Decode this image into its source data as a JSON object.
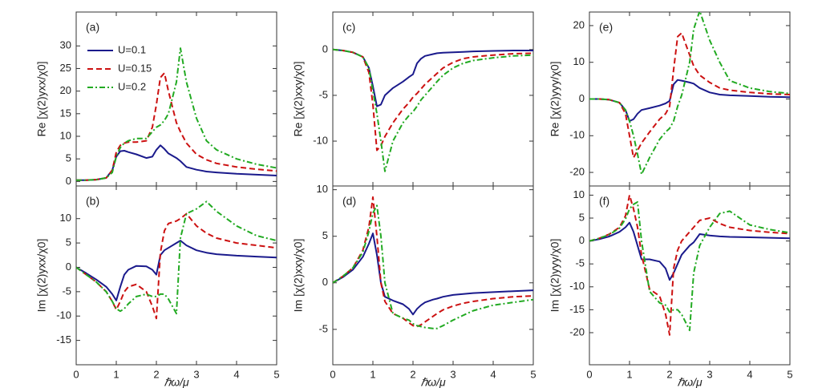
{
  "chart_data": [
    {
      "type": "line",
      "panel_label": "(a)",
      "ylabel": "Re [χ(2)yxx/χ0]",
      "legend": true,
      "x": [
        0,
        0.25,
        0.5,
        0.75,
        0.9,
        1,
        1.1,
        1.2,
        1.3,
        1.5,
        1.75,
        1.9,
        2,
        2.1,
        2.2,
        2.3,
        2.5,
        2.6,
        2.75,
        3,
        3.25,
        3.5,
        4,
        4.5,
        5
      ],
      "xlim": [
        0,
        5
      ],
      "xticks": [
        0,
        1,
        2,
        3,
        4,
        5
      ],
      "ylim": [
        -1,
        37.5
      ],
      "yticks": [
        0,
        5,
        10,
        15,
        20,
        25,
        30
      ],
      "series": [
        {
          "name": "U=0.1",
          "color": "#1a1a8c",
          "dash": "none",
          "values": [
            0.3,
            0.3,
            0.4,
            0.8,
            2.5,
            5.5,
            6.7,
            6.8,
            6.5,
            6,
            5.2,
            5.5,
            7,
            8,
            7.2,
            6.2,
            5.2,
            4.5,
            3.2,
            2.6,
            2.2,
            2,
            1.7,
            1.5,
            1.3
          ]
        },
        {
          "name": "U=0.15",
          "color": "#cc1111",
          "dash": "7,4",
          "values": [
            0.3,
            0.3,
            0.4,
            0.8,
            2.5,
            6.5,
            8,
            8.5,
            8.7,
            8.7,
            9,
            12,
            17,
            23,
            24,
            20,
            13,
            11,
            8.5,
            6,
            4.8,
            4,
            3.2,
            2.7,
            2.3
          ]
        },
        {
          "name": "U=0.2",
          "color": "#22aa22",
          "dash": "7,3,2,3",
          "values": [
            0.3,
            0.3,
            0.4,
            0.8,
            2,
            5.5,
            7.5,
            8.5,
            9,
            9.5,
            9.5,
            11,
            12,
            12.5,
            13.5,
            15,
            22,
            29.5,
            22,
            14,
            9,
            7,
            5,
            3.8,
            3
          ]
        }
      ]
    },
    {
      "type": "line",
      "panel_label": "(b)",
      "ylabel": "Im [χ(2)yxx/χ0]",
      "xlabel": "ℏω/μ",
      "legend": false,
      "x": [
        0,
        0.25,
        0.5,
        0.75,
        0.9,
        1,
        1.1,
        1.2,
        1.3,
        1.5,
        1.75,
        1.9,
        2,
        2.1,
        2.2,
        2.3,
        2.5,
        2.6,
        2.75,
        3,
        3.25,
        3.5,
        4,
        4.5,
        5
      ],
      "xlim": [
        0,
        5
      ],
      "xticks": [
        0,
        1,
        2,
        3,
        4,
        5
      ],
      "ylim": [
        -20,
        16.7
      ],
      "yticks": [
        -15,
        -10,
        -5,
        0,
        5,
        10
      ],
      "series": [
        {
          "name": "U=0.1",
          "color": "#1a1a8c",
          "dash": "none",
          "values": [
            0,
            -1.2,
            -2.5,
            -4,
            -5.5,
            -6.8,
            -4,
            -1.5,
            -0.5,
            0.3,
            0.2,
            -0.5,
            -1.5,
            2.5,
            3.5,
            4,
            5,
            5.5,
            4.5,
            3.5,
            3,
            2.7,
            2.4,
            2.2,
            2
          ]
        },
        {
          "name": "U=0.15",
          "color": "#cc1111",
          "dash": "7,4",
          "values": [
            0,
            -1.5,
            -3,
            -5,
            -7,
            -8.7,
            -7,
            -5,
            -4,
            -3.5,
            -5,
            -8,
            -10.5,
            3,
            7.5,
            9,
            9.5,
            10,
            11,
            8.5,
            7,
            6,
            5,
            4.5,
            4
          ]
        },
        {
          "name": "U=0.2",
          "color": "#22aa22",
          "dash": "7,3,2,3",
          "values": [
            0,
            -1.5,
            -3,
            -5,
            -7,
            -8.5,
            -9,
            -8.5,
            -7.5,
            -6,
            -5.5,
            -6,
            -6,
            -5.5,
            -5.5,
            -6.5,
            -9.5,
            6,
            11,
            12,
            13.5,
            11.5,
            8.5,
            6.5,
            5.5
          ]
        }
      ]
    },
    {
      "type": "line",
      "panel_label": "(c)",
      "ylabel": "Re [χ(2)xxy/χ0]",
      "legend": false,
      "x": [
        0,
        0.25,
        0.5,
        0.75,
        0.9,
        1,
        1.1,
        1.2,
        1.3,
        1.5,
        1.75,
        1.9,
        2,
        2.1,
        2.2,
        2.3,
        2.5,
        2.6,
        2.75,
        3,
        3.25,
        3.5,
        4,
        4.5,
        5
      ],
      "xlim": [
        0,
        5
      ],
      "xticks": [
        0,
        1,
        2,
        3,
        4,
        5
      ],
      "ylim": [
        -14.9,
        4.1
      ],
      "yticks": [
        -10,
        -5,
        0
      ],
      "series": [
        {
          "name": "U=0.1",
          "color": "#1a1a8c",
          "dash": "none",
          "values": [
            0,
            -0.1,
            -0.3,
            -0.8,
            -2,
            -4,
            -6.2,
            -6,
            -5,
            -4.2,
            -3.5,
            -3,
            -2.7,
            -1.5,
            -1,
            -0.7,
            -0.5,
            -0.4,
            -0.35,
            -0.3,
            -0.25,
            -0.2,
            -0.15,
            -0.1,
            -0.1
          ]
        },
        {
          "name": "U=0.15",
          "color": "#cc1111",
          "dash": "7,4",
          "values": [
            0,
            -0.1,
            -0.3,
            -0.8,
            -2.5,
            -6,
            -11,
            -10.5,
            -9.5,
            -8,
            -6.5,
            -5.8,
            -5.2,
            -4.8,
            -4.3,
            -3.8,
            -3,
            -2.6,
            -2,
            -1.4,
            -1,
            -0.8,
            -0.6,
            -0.45,
            -0.4
          ]
        },
        {
          "name": "U=0.2",
          "color": "#22aa22",
          "dash": "7,3,2,3",
          "values": [
            0,
            -0.1,
            -0.3,
            -0.8,
            -2,
            -4.5,
            -7,
            -10,
            -13.3,
            -10,
            -8,
            -7.2,
            -6.8,
            -6.2,
            -5.5,
            -5,
            -4,
            -3.5,
            -2.8,
            -2,
            -1.5,
            -1.2,
            -0.9,
            -0.7,
            -0.6
          ]
        }
      ]
    },
    {
      "type": "line",
      "panel_label": "(d)",
      "ylabel": "Im [χ(2)xxy/χ0]",
      "xlabel": "ℏω/μ",
      "legend": false,
      "x": [
        0,
        0.25,
        0.5,
        0.75,
        0.9,
        1,
        1.1,
        1.2,
        1.3,
        1.5,
        1.75,
        1.9,
        2,
        2.1,
        2.2,
        2.3,
        2.5,
        2.6,
        2.75,
        3,
        3.25,
        3.5,
        4,
        4.5,
        5
      ],
      "xlim": [
        0,
        5
      ],
      "xticks": [
        0,
        1,
        2,
        3,
        4,
        5
      ],
      "ylim": [
        -8.8,
        10.4
      ],
      "yticks": [
        -5,
        0,
        5,
        10
      ],
      "series": [
        {
          "name": "U=0.1",
          "color": "#1a1a8c",
          "dash": "none",
          "values": [
            0,
            0.6,
            1.4,
            2.8,
            4.2,
            5.3,
            3,
            0,
            -1.5,
            -1.9,
            -2.3,
            -2.8,
            -3.4,
            -2.8,
            -2.4,
            -2.1,
            -1.8,
            -1.7,
            -1.5,
            -1.3,
            -1.2,
            -1.1,
            -1,
            -0.9,
            -0.8
          ]
        },
        {
          "name": "U=0.15",
          "color": "#cc1111",
          "dash": "7,4",
          "values": [
            0,
            0.7,
            1.6,
            3.5,
            6,
            9.2,
            5,
            0,
            -2,
            -3.3,
            -3.8,
            -4.3,
            -4.6,
            -4.7,
            -4.5,
            -4.2,
            -3.6,
            -3.3,
            -2.9,
            -2.5,
            -2.2,
            -2,
            -1.7,
            -1.5,
            -1.4
          ]
        },
        {
          "name": "U=0.2",
          "color": "#22aa22",
          "dash": "7,3,2,3",
          "values": [
            0,
            0.7,
            1.6,
            3.3,
            5.5,
            7.5,
            8.3,
            5,
            0,
            -3.3,
            -3.8,
            -4,
            -4.4,
            -4.6,
            -4.7,
            -4.8,
            -4.9,
            -4.9,
            -4.6,
            -4,
            -3.5,
            -3,
            -2.4,
            -2.1,
            -1.8
          ]
        }
      ]
    },
    {
      "type": "line",
      "panel_label": "(e)",
      "ylabel": "Re [χ(2)yyy/χ0]",
      "legend": false,
      "x": [
        0,
        0.25,
        0.5,
        0.75,
        0.9,
        1,
        1.1,
        1.2,
        1.3,
        1.5,
        1.75,
        1.9,
        2,
        2.1,
        2.2,
        2.3,
        2.5,
        2.6,
        2.75,
        3,
        3.25,
        3.5,
        4,
        4.5,
        5
      ],
      "xlim": [
        0,
        5
      ],
      "xticks": [
        0,
        1,
        2,
        3,
        4,
        5
      ],
      "ylim": [
        -23.7,
        23.7
      ],
      "yticks": [
        -20,
        -10,
        0,
        10,
        20
      ],
      "series": [
        {
          "name": "U=0.1",
          "color": "#1a1a8c",
          "dash": "none",
          "values": [
            0,
            0,
            -0.2,
            -1,
            -3,
            -6,
            -5.5,
            -4,
            -3,
            -2.5,
            -1.8,
            -1.2,
            -0.5,
            4,
            5.2,
            5,
            4.5,
            4.2,
            3,
            1.8,
            1.2,
            1,
            0.8,
            0.6,
            0.5
          ]
        },
        {
          "name": "U=0.15",
          "color": "#cc1111",
          "dash": "7,4",
          "values": [
            0,
            0,
            -0.2,
            -1,
            -4,
            -10,
            -16,
            -14,
            -12,
            -9,
            -5.5,
            -4,
            -2,
            8,
            17,
            18,
            12,
            9,
            6.5,
            4.5,
            3,
            2.4,
            1.8,
            1.4,
            1.2
          ]
        },
        {
          "name": "U=0.2",
          "color": "#22aa22",
          "dash": "7,3,2,3",
          "values": [
            0,
            0,
            -0.2,
            -1,
            -3,
            -6,
            -10,
            -15,
            -20.5,
            -16,
            -11,
            -9,
            -8,
            -6,
            -2,
            1,
            10,
            19,
            24,
            16,
            10,
            5,
            3,
            2,
            1.5
          ]
        }
      ]
    },
    {
      "type": "line",
      "panel_label": "(f)",
      "ylabel": "Im [χ(2)yyy/χ0]",
      "xlabel": "ℏω/μ",
      "legend": false,
      "x": [
        0,
        0.25,
        0.5,
        0.75,
        0.9,
        1,
        1.1,
        1.2,
        1.3,
        1.5,
        1.75,
        1.9,
        2,
        2.1,
        2.2,
        2.3,
        2.5,
        2.6,
        2.75,
        3,
        3.25,
        3.5,
        4,
        4.5,
        5
      ],
      "xlim": [
        0,
        5
      ],
      "xticks": [
        0,
        1,
        2,
        3,
        4,
        5
      ],
      "ylim": [
        -27,
        12
      ],
      "yticks": [
        -20,
        -15,
        -10,
        -5,
        0,
        5,
        10
      ],
      "series": [
        {
          "name": "U=0.1",
          "color": "#1a1a8c",
          "dash": "none",
          "values": [
            0,
            0.4,
            1,
            2,
            3,
            4,
            2,
            -1,
            -4,
            -4,
            -4.5,
            -6,
            -8.5,
            -7,
            -5,
            -3,
            -1,
            -0.3,
            1.5,
            1.2,
            1,
            0.9,
            0.8,
            0.7,
            0.6
          ]
        },
        {
          "name": "U=0.15",
          "color": "#cc1111",
          "dash": "7,4",
          "values": [
            0,
            0.6,
            1.5,
            3,
            5.5,
            10,
            7,
            3,
            -3,
            -10.5,
            -12,
            -16,
            -20.5,
            -6,
            -2,
            0,
            2,
            3,
            4.5,
            5,
            3.8,
            3,
            2.3,
            1.9,
            1.6
          ]
        },
        {
          "name": "U=0.2",
          "color": "#22aa22",
          "dash": "7,3,2,3",
          "values": [
            0,
            0.6,
            1.4,
            2.8,
            4.8,
            7,
            8,
            8.5,
            0,
            -11,
            -13.5,
            -14,
            -15.5,
            -15,
            -15,
            -16,
            -19.5,
            -7,
            -1,
            3,
            6,
            6.5,
            3.5,
            2.5,
            1.8
          ]
        }
      ]
    }
  ]
}
